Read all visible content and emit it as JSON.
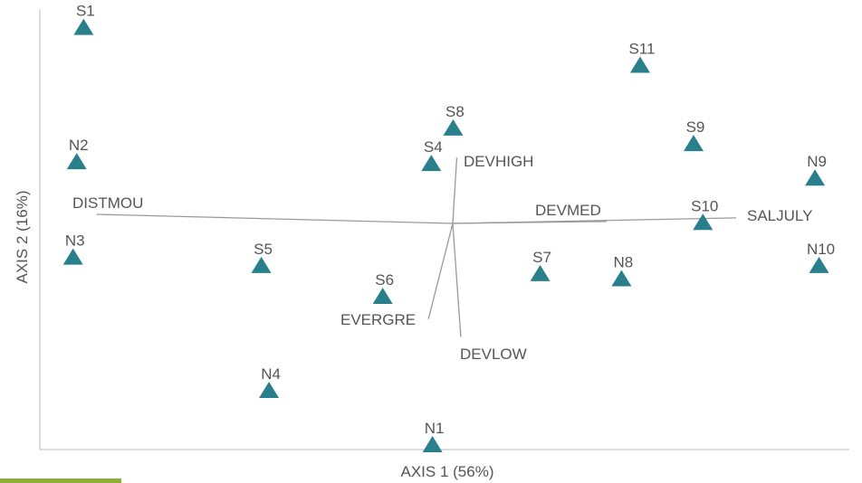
{
  "chart_data": {
    "type": "scatter",
    "title": "",
    "xlabel": "AXIS 1 (56%)",
    "ylabel": "AXIS 2 (16%)",
    "grid": false,
    "legend": "none",
    "xlim": [
      -1.0,
      1.0
    ],
    "ylim": [
      -1.0,
      1.0
    ],
    "marker": "triangle",
    "colors": {
      "marker": "#2a7f8c",
      "vector": "#999999",
      "axis": "#bdbdbd",
      "text": "#555555",
      "accent_strip": "#8db03a"
    },
    "points": [
      {
        "label": "S1",
        "x": -0.912,
        "y": 0.887
      },
      {
        "label": "S11",
        "x": 0.463,
        "y": 0.715
      },
      {
        "label": "S8",
        "x": 0.001,
        "y": 0.431
      },
      {
        "label": "S9",
        "x": 0.595,
        "y": 0.36
      },
      {
        "label": "N2",
        "x": -0.929,
        "y": 0.278
      },
      {
        "label": "S4",
        "x": -0.053,
        "y": 0.27
      },
      {
        "label": "N9",
        "x": 0.895,
        "y": 0.204
      },
      {
        "label": "S10",
        "x": 0.618,
        "y": 0.003
      },
      {
        "label": "N3",
        "x": -0.938,
        "y": -0.154
      },
      {
        "label": "N10",
        "x": 0.905,
        "y": -0.192
      },
      {
        "label": "S5",
        "x": -0.473,
        "y": -0.192
      },
      {
        "label": "S7",
        "x": 0.216,
        "y": -0.229
      },
      {
        "label": "N8",
        "x": 0.417,
        "y": -0.252
      },
      {
        "label": "S6",
        "x": -0.173,
        "y": -0.332
      },
      {
        "label": "N4",
        "x": -0.454,
        "y": -0.758
      },
      {
        "label": "N1",
        "x": -0.05,
        "y": -1.004
      }
    ],
    "vectors": [
      {
        "label": "DISTMOU",
        "x": -0.88,
        "y": 0.041
      },
      {
        "label": "SALJULY",
        "x": 0.7,
        "y": 0.025
      },
      {
        "label": "DEVMED",
        "x": 0.38,
        "y": 0.009
      },
      {
        "label": "DEVHIGH",
        "x": 0.01,
        "y": 0.298
      },
      {
        "label": "EVERGRE",
        "x": -0.06,
        "y": -0.433
      },
      {
        "label": "DEVLOW",
        "x": 0.02,
        "y": -0.514
      }
    ]
  }
}
